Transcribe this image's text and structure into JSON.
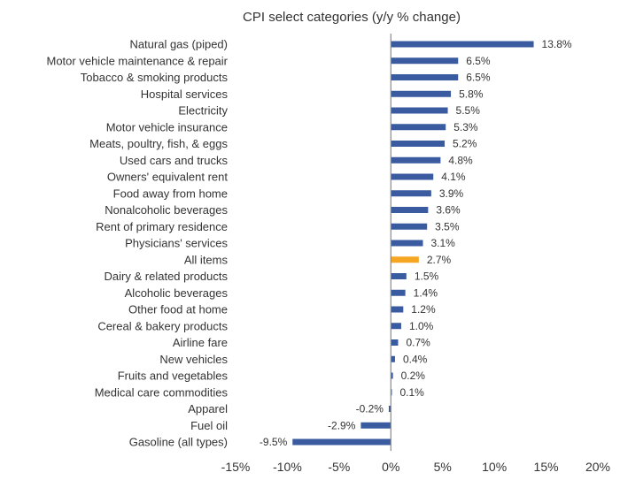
{
  "chart_data": {
    "type": "bar",
    "orientation": "horizontal",
    "title": "CPI select categories (y/y % change)",
    "xlim": [
      -15,
      20
    ],
    "xticks": [
      "-15%",
      "-10%",
      "-5%",
      "0%",
      "5%",
      "10%",
      "15%",
      "20%"
    ],
    "xtick_values": [
      -15,
      -10,
      -5,
      0,
      5,
      10,
      15,
      20
    ],
    "grid": false,
    "colors": {
      "default": "#3a5ba0",
      "highlight": "#f5a623",
      "zero_line": "#888888"
    },
    "highlight_category": "All items",
    "categories": [
      "Natural gas (piped)",
      "Motor vehicle maintenance & repair",
      "Tobacco & smoking products",
      "Hospital services",
      "Electricity",
      "Motor vehicle insurance",
      "Meats, poultry, fish, & eggs",
      "Used cars and trucks",
      "Owners' equivalent rent",
      "Food away from home",
      "Nonalcoholic beverages",
      "Rent of primary residence",
      "Physicians' services",
      "All items",
      "Dairy & related products",
      "Alcoholic beverages",
      "Other food at home",
      "Cereal & bakery products",
      "Airline fare",
      "New vehicles",
      "Fruits and vegetables",
      "Medical care commodities",
      "Apparel",
      "Fuel oil",
      "Gasoline (all types)"
    ],
    "values": [
      13.8,
      6.5,
      6.5,
      5.8,
      5.5,
      5.3,
      5.2,
      4.8,
      4.1,
      3.9,
      3.6,
      3.5,
      3.1,
      2.7,
      1.5,
      1.4,
      1.2,
      1.0,
      0.7,
      0.4,
      0.2,
      0.1,
      -0.2,
      -2.9,
      -9.5
    ],
    "value_labels": [
      "13.8%",
      "6.5%",
      "6.5%",
      "5.8%",
      "5.5%",
      "5.3%",
      "5.2%",
      "4.8%",
      "4.1%",
      "3.9%",
      "3.6%",
      "3.5%",
      "3.1%",
      "2.7%",
      "1.5%",
      "1.4%",
      "1.2%",
      "1.0%",
      "0.7%",
      "0.4%",
      "0.2%",
      "0.1%",
      "-0.2%",
      "-2.9%",
      "-9.5%"
    ]
  }
}
